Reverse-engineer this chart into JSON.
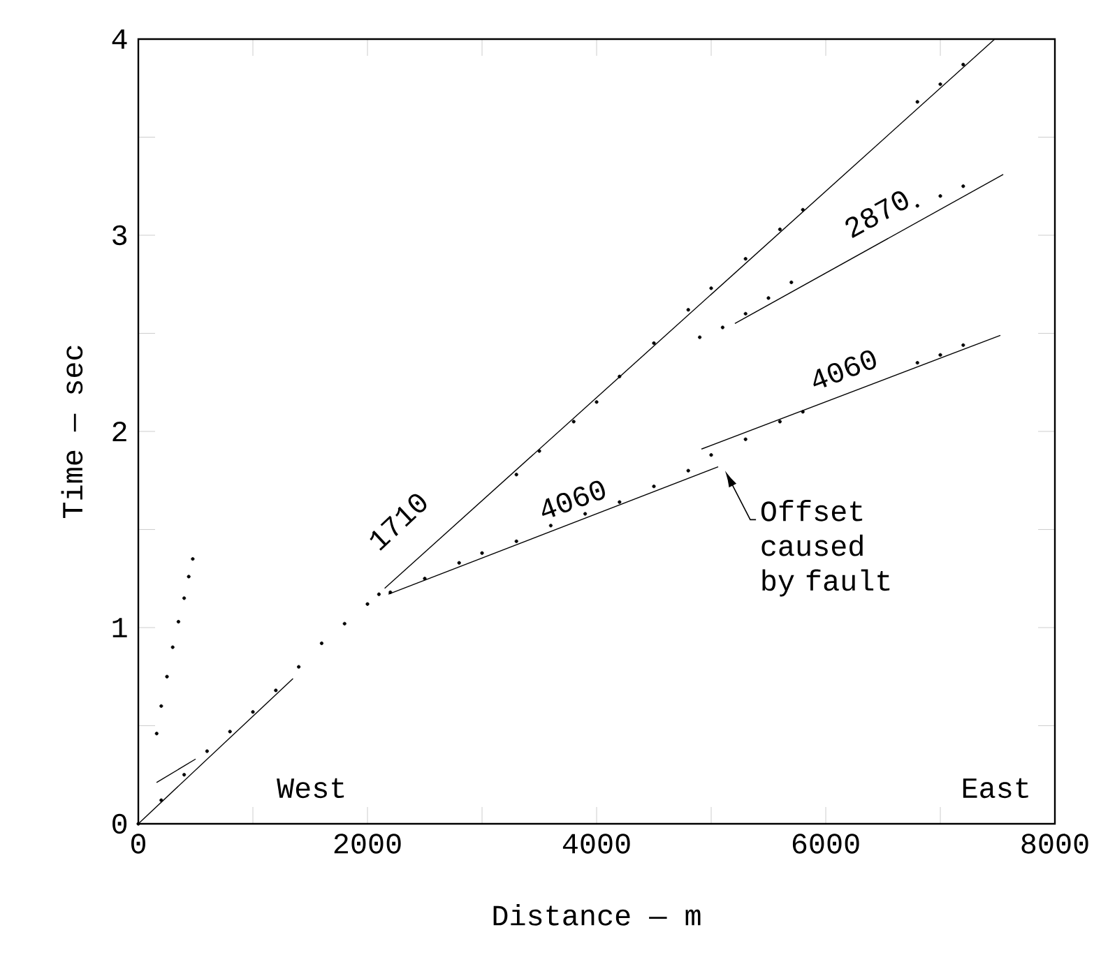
{
  "chart_data": {
    "type": "scatter",
    "xlabel": "Distance — m",
    "ylabel": "Time — sec",
    "xlim": [
      0,
      8000
    ],
    "ylim": [
      0,
      4
    ],
    "xticks": [
      0,
      {
        "value": 1000,
        "label": null
      },
      2000,
      {
        "value": 3000,
        "label": null
      },
      4000,
      {
        "value": 5000,
        "label": null
      },
      6000,
      {
        "value": 7000,
        "label": null
      },
      8000
    ],
    "yticks": [
      0,
      {
        "value": 0.5,
        "label": null
      },
      1,
      {
        "value": 1.5,
        "label": null
      },
      2,
      {
        "value": 2.5,
        "label": null
      },
      3,
      {
        "value": 3.5,
        "label": null
      },
      4
    ],
    "grid": false,
    "series": [
      {
        "type": "line",
        "color": "#000000",
        "x": [
          0,
          1350
        ],
        "values": [
          0,
          0.74
        ]
      },
      {
        "type": "line",
        "color": "#000000",
        "x": [
          2150,
          7475
        ],
        "values": [
          1.2,
          4.0
        ]
      },
      {
        "type": "line",
        "color": "#000000",
        "x": [
          2183,
          5061
        ],
        "values": [
          1.17,
          1.82
        ]
      },
      {
        "type": "line",
        "color": "#000000",
        "x": [
          4915,
          7524
        ],
        "values": [
          1.91,
          2.49
        ]
      },
      {
        "type": "line",
        "color": "#000000",
        "x": [
          5207,
          7549
        ],
        "values": [
          2.55,
          3.31
        ]
      },
      {
        "type": "line",
        "color": "#000000",
        "x": [
          159,
          500
        ],
        "values": [
          0.21,
          0.33
        ]
      },
      {
        "color": "#000000",
        "x": [
          160,
          200,
          250,
          300,
          350,
          400,
          440,
          475
        ],
        "values": [
          0.46,
          0.6,
          0.75,
          0.9,
          1.03,
          1.15,
          1.26,
          1.35
        ]
      },
      {
        "color": "#000000",
        "x": [
          0,
          200,
          400,
          600,
          800,
          1000,
          1200,
          1400,
          1600,
          1800,
          2000,
          2100
        ],
        "values": [
          0,
          0.12,
          0.25,
          0.37,
          0.47,
          0.57,
          0.68,
          0.8,
          0.92,
          1.02,
          1.12,
          1.17
        ]
      },
      {
        "color": "#000000",
        "x": [
          2200,
          2500,
          2800,
          3000,
          3300,
          3600,
          3900,
          4200,
          4500,
          4800,
          5000,
          5300,
          5600,
          5800,
          6800,
          7000,
          7200
        ],
        "values": [
          1.18,
          1.25,
          1.33,
          1.38,
          1.44,
          1.52,
          1.58,
          1.64,
          1.72,
          1.8,
          1.88,
          1.96,
          2.05,
          2.1,
          2.35,
          2.39,
          2.44
        ]
      },
      {
        "color": "#000000",
        "x": [
          3300,
          3500,
          3800,
          4000,
          4200,
          4500,
          4800,
          5000,
          5300,
          5600,
          5800,
          6800,
          7000,
          7200
        ],
        "values": [
          1.78,
          1.9,
          2.05,
          2.15,
          2.28,
          2.45,
          2.62,
          2.73,
          2.88,
          3.03,
          3.13,
          3.68,
          3.77,
          3.87
        ]
      },
      {
        "color": "#000000",
        "x": [
          4900,
          5100,
          5300,
          5500,
          5700,
          6800,
          7000,
          7200
        ],
        "values": [
          2.48,
          2.53,
          2.6,
          2.68,
          2.76,
          3.15,
          3.2,
          3.25
        ]
      }
    ],
    "annotations": [
      {
        "text": "1710",
        "x": 2512,
        "y": 1.39
      },
      {
        "text": "4060",
        "x": 3854,
        "y": 1.55
      },
      {
        "text": "2870",
        "x": 6561,
        "y": 2.99
      },
      {
        "text": "4060",
        "x": 6232,
        "y": 2.2
      },
      {
        "text": "Offset caused by fault",
        "x": 5061,
        "y": 1.82
      },
      "West",
      "East"
    ]
  }
}
